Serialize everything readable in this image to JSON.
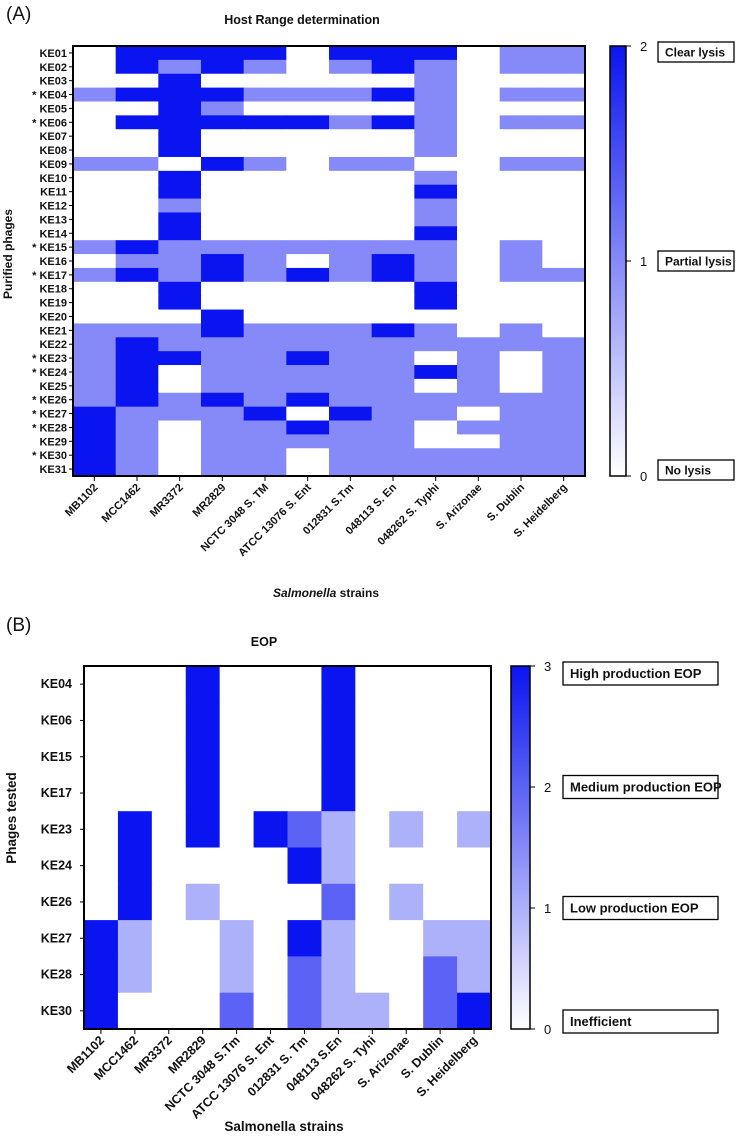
{
  "chart_data": [
    {
      "type": "heatmap",
      "panel_label": "(A)",
      "title": "Host Range determination",
      "xlabel_italic": "Salmonella",
      "xlabel_rest": " strains",
      "ylabel": "Purified phages",
      "x_categories": [
        "MB1102",
        "MCC1462",
        "MR3372",
        "MR2829",
        "NCTC 3048 S. TM",
        "ATCC 13076 S. Ent",
        "012831 S.Tm",
        "048113 S. En",
        "048262 S. Typhi",
        "S. Arizonae",
        "S. Dublin",
        "S. Heidelberg"
      ],
      "y_categories": [
        "KE01",
        "KE02",
        "KE03",
        "* KE04",
        "KE05",
        "* KE06",
        "KE07",
        "KE08",
        "KE09",
        "KE10",
        "KE11",
        "KE12",
        "KE13",
        "KE14",
        "* KE15",
        "KE16",
        "* KE17",
        "KE18",
        "KE19",
        "KE20",
        "KE21",
        "KE22",
        "* KE23",
        "* KE24",
        "KE25",
        "* KE26",
        "* KE27",
        "* KE28",
        "KE29",
        "* KE30",
        "KE31"
      ],
      "values": [
        [
          0,
          2,
          2,
          2,
          2,
          0,
          2,
          2,
          2,
          0,
          1,
          1
        ],
        [
          0,
          2,
          1,
          2,
          1,
          0,
          1,
          2,
          1,
          0,
          1,
          1
        ],
        [
          0,
          0,
          2,
          0,
          0,
          0,
          0,
          0,
          1,
          0,
          0,
          0
        ],
        [
          1,
          2,
          2,
          2,
          1,
          1,
          1,
          2,
          1,
          0,
          1,
          1
        ],
        [
          0,
          0,
          2,
          1,
          0,
          0,
          0,
          0,
          1,
          0,
          0,
          0
        ],
        [
          0,
          2,
          2,
          2,
          2,
          2,
          1,
          2,
          1,
          0,
          1,
          1
        ],
        [
          0,
          0,
          2,
          0,
          0,
          0,
          0,
          0,
          1,
          0,
          0,
          0
        ],
        [
          0,
          0,
          2,
          0,
          0,
          0,
          0,
          0,
          1,
          0,
          0,
          0
        ],
        [
          1,
          1,
          0,
          2,
          1,
          0,
          1,
          1,
          0,
          0,
          1,
          1
        ],
        [
          0,
          0,
          2,
          0,
          0,
          0,
          0,
          0,
          1,
          0,
          0,
          0
        ],
        [
          0,
          0,
          2,
          0,
          0,
          0,
          0,
          0,
          2,
          0,
          0,
          0
        ],
        [
          0,
          0,
          1,
          0,
          0,
          0,
          0,
          0,
          1,
          0,
          0,
          0
        ],
        [
          0,
          0,
          2,
          0,
          0,
          0,
          0,
          0,
          1,
          0,
          0,
          0
        ],
        [
          0,
          0,
          2,
          0,
          0,
          0,
          0,
          0,
          2,
          0,
          0,
          0
        ],
        [
          1,
          2,
          1,
          1,
          1,
          1,
          1,
          1,
          1,
          0,
          1,
          0
        ],
        [
          0,
          1,
          1,
          2,
          1,
          0,
          1,
          2,
          1,
          0,
          1,
          0
        ],
        [
          1,
          2,
          1,
          2,
          1,
          2,
          1,
          2,
          1,
          0,
          1,
          1
        ],
        [
          0,
          0,
          2,
          0,
          0,
          0,
          0,
          0,
          2,
          0,
          0,
          0
        ],
        [
          0,
          0,
          2,
          0,
          0,
          0,
          0,
          0,
          2,
          0,
          0,
          0
        ],
        [
          0,
          0,
          0,
          2,
          0,
          0,
          0,
          0,
          0,
          0,
          0,
          0
        ],
        [
          1,
          1,
          1,
          2,
          1,
          1,
          1,
          2,
          1,
          0,
          1,
          0
        ],
        [
          1,
          2,
          1,
          1,
          1,
          1,
          1,
          1,
          1,
          1,
          1,
          1
        ],
        [
          1,
          2,
          2,
          1,
          1,
          2,
          1,
          1,
          0,
          1,
          0,
          1
        ],
        [
          1,
          2,
          0,
          1,
          1,
          1,
          1,
          1,
          2,
          1,
          0,
          1
        ],
        [
          1,
          2,
          0,
          1,
          1,
          1,
          1,
          1,
          0,
          1,
          0,
          1
        ],
        [
          1,
          2,
          1,
          2,
          1,
          2,
          1,
          1,
          1,
          1,
          1,
          1
        ],
        [
          2,
          1,
          1,
          1,
          2,
          0,
          2,
          1,
          1,
          0,
          1,
          1
        ],
        [
          2,
          1,
          0,
          1,
          1,
          2,
          1,
          1,
          0,
          1,
          1,
          1
        ],
        [
          2,
          1,
          0,
          1,
          1,
          1,
          1,
          1,
          0,
          0,
          1,
          1
        ],
        [
          2,
          1,
          0,
          1,
          1,
          0,
          1,
          1,
          1,
          1,
          1,
          1
        ],
        [
          2,
          1,
          0,
          1,
          1,
          0,
          1,
          1,
          1,
          1,
          1,
          1
        ]
      ],
      "scale_min": 0,
      "scale_max": 2,
      "colorbar_ticks": [
        "0",
        "1",
        "2"
      ],
      "colorbar_labels": [
        "No lysis",
        "Partial lysis",
        "Clear lysis"
      ],
      "color_low": "#ffffff",
      "color_high": "#0a14f0"
    },
    {
      "type": "heatmap",
      "panel_label": "(B)",
      "title": "EOP",
      "xlabel": "Salmonella strains",
      "ylabel": "Phages tested",
      "x_categories": [
        "MB1102",
        "MCC1462",
        "MR3372",
        "MR2829",
        "NCTC 3048 S.Tm",
        "ATCC 13076 S. Ent",
        "012831 S. Tm",
        "048113 S.En",
        "048262 S. Tyhi",
        "S. Arizonae",
        "S. Dublin",
        "S. Heidelberg"
      ],
      "y_categories": [
        "KE04",
        "KE06",
        "KE15",
        "KE17",
        "KE23",
        "KE24",
        "KE26",
        "KE27",
        "KE28",
        "KE30"
      ],
      "values": [
        [
          0,
          0,
          0,
          3,
          0,
          0,
          0,
          3,
          0,
          0,
          0,
          0
        ],
        [
          0,
          0,
          0,
          3,
          0,
          0,
          0,
          3,
          0,
          0,
          0,
          0
        ],
        [
          0,
          0,
          0,
          3,
          0,
          0,
          0,
          3,
          0,
          0,
          0,
          0
        ],
        [
          0,
          0,
          0,
          3,
          0,
          0,
          0,
          3,
          0,
          0,
          0,
          0
        ],
        [
          0,
          3,
          0,
          3,
          0,
          3,
          2,
          1,
          0,
          1,
          0,
          1
        ],
        [
          0,
          3,
          0,
          0,
          0,
          0,
          3,
          1,
          0,
          0,
          0,
          0
        ],
        [
          0,
          3,
          0,
          1,
          0,
          0,
          0,
          2,
          0,
          1,
          0,
          0
        ],
        [
          3,
          1,
          0,
          0,
          1,
          0,
          3,
          1,
          0,
          0,
          1,
          1
        ],
        [
          3,
          1,
          0,
          0,
          1,
          0,
          2,
          1,
          0,
          0,
          2,
          1
        ],
        [
          3,
          0,
          0,
          0,
          2,
          0,
          2,
          1,
          1,
          0,
          2,
          3
        ]
      ],
      "scale_min": 0,
      "scale_max": 3,
      "colorbar_ticks": [
        "0",
        "1",
        "2",
        "3"
      ],
      "colorbar_labels": [
        "Inefficient",
        "Low production EOP",
        "Medium production EOP",
        "High production EOP"
      ],
      "color_low": "#ffffff",
      "color_high": "#0a14f0"
    }
  ]
}
